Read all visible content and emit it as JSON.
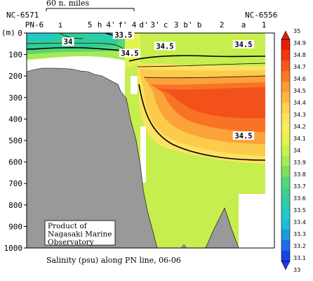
{
  "chart_data": {
    "type": "heatmap",
    "title": "Salinity (psu) along PN line, 06-06",
    "ylabel": "(m)",
    "ylim": [
      0,
      1000
    ],
    "y_ticks": [
      0,
      100,
      200,
      300,
      400,
      500,
      600,
      700,
      800,
      900,
      1000
    ],
    "stations": [
      "PN-6",
      "i",
      "5",
      "h",
      "4'",
      "f'",
      "4",
      "d'",
      "3'",
      "c",
      "3",
      "b'",
      "b",
      "2",
      "a",
      "1"
    ],
    "start_station": "NC-6571",
    "end_station": "NC-6556",
    "scale_label": "60 n. miles",
    "colorbar": {
      "min": 33.0,
      "max": 35.0,
      "ticks": [
        35,
        34.9,
        34.8,
        34.7,
        34.6,
        34.5,
        34.4,
        34.3,
        34.2,
        34.1,
        34,
        33.9,
        33.8,
        33.7,
        33.6,
        33.5,
        33.4,
        33.3,
        33.2,
        33.1,
        33
      ],
      "colors": [
        "#e51c05",
        "#f0390c",
        "#f7571a",
        "#fb7a26",
        "#fd9a33",
        "#fdb740",
        "#fdd152",
        "#fde262",
        "#f3ef56",
        "#e4f24f",
        "#cbf04f",
        "#a6ea55",
        "#7be05d",
        "#55d774",
        "#3bd08e",
        "#2ccdaa",
        "#24c8c6",
        "#1fbbd9",
        "#1d98e2",
        "#1b6ee6",
        "#1d3ee8"
      ]
    },
    "contour_labels": [
      {
        "value": "33.5",
        "station": "f'",
        "depth": 8
      },
      {
        "value": "34",
        "station": "i",
        "depth": 40
      },
      {
        "value": "34.5",
        "station": "3'",
        "depth": 60
      },
      {
        "value": "34.5",
        "station": "a",
        "depth": 52
      },
      {
        "value": "34.5",
        "station": "4",
        "depth": 93
      },
      {
        "value": "34.5",
        "station": "a",
        "depth": 477
      }
    ],
    "annotation": "Product of\nNagasaki Marine\nObservatory"
  }
}
